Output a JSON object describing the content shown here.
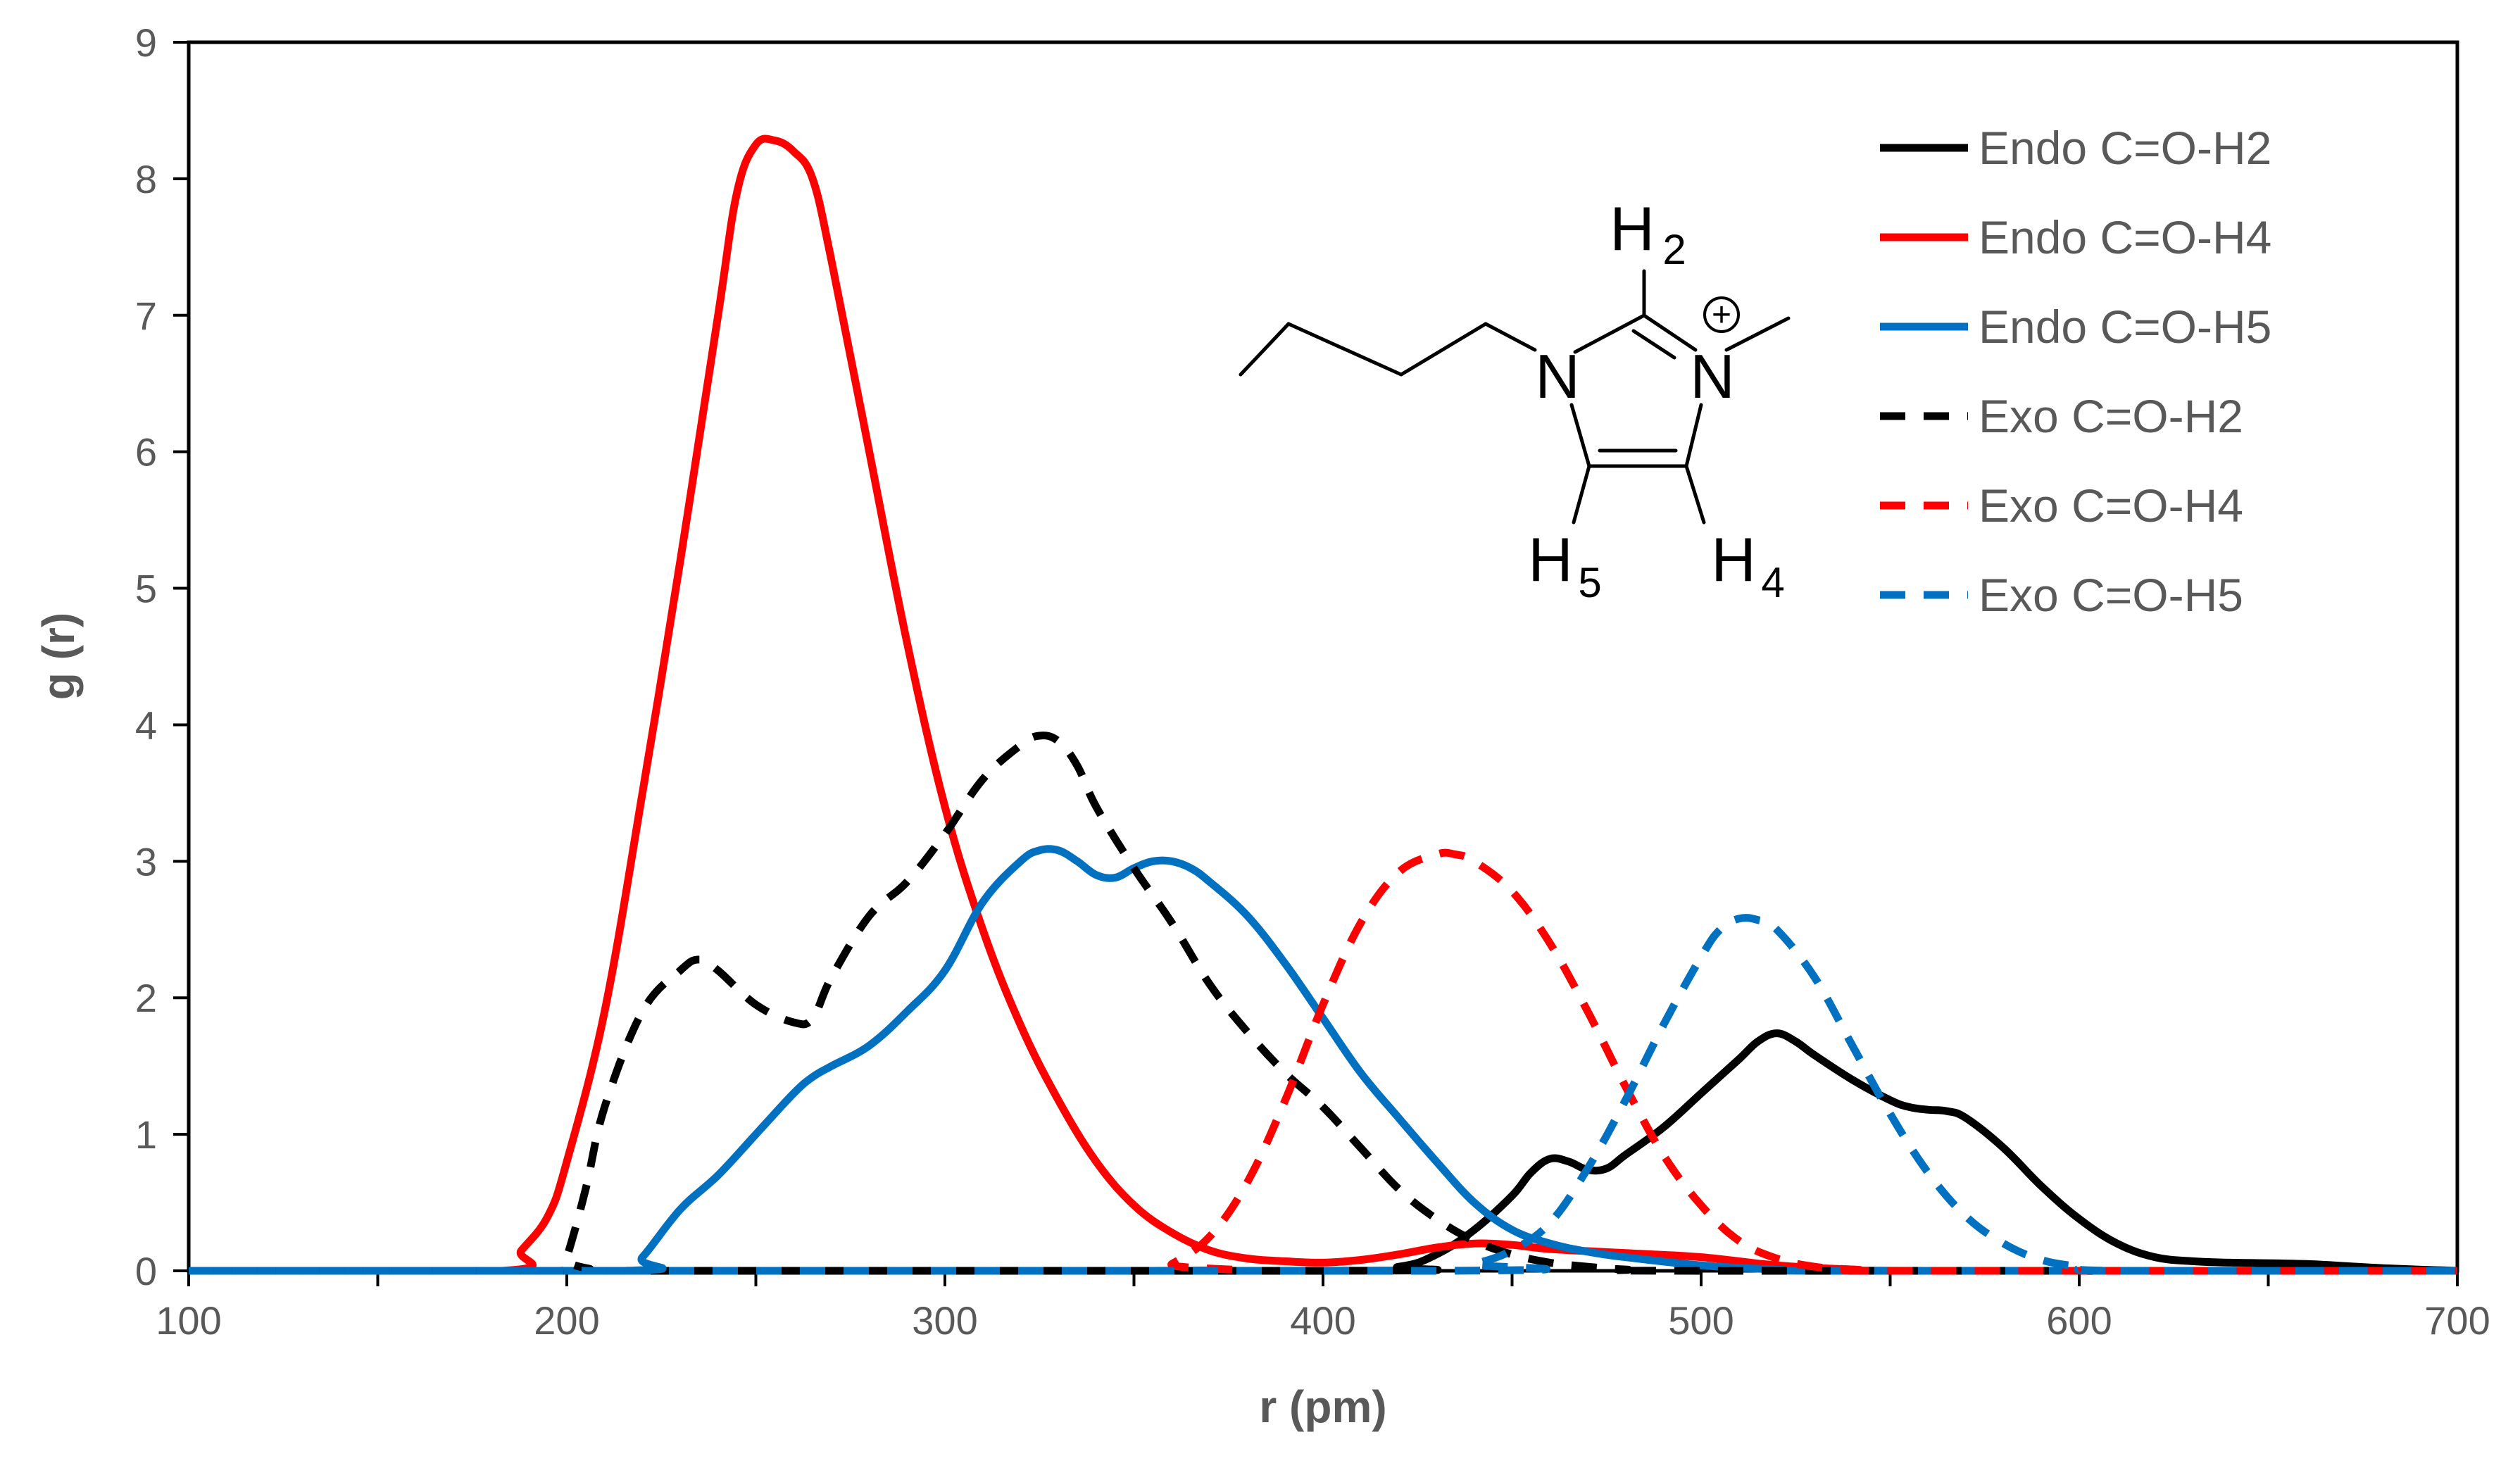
{
  "chart_data": {
    "type": "line",
    "xlabel": "r (pm)",
    "ylabel": "g (r)",
    "xlim": [
      100,
      700
    ],
    "ylim": [
      0,
      9
    ],
    "x_ticks": [
      "100",
      "200",
      "300",
      "400",
      "500",
      "600",
      "700"
    ],
    "y_ticks": [
      "0",
      "1",
      "2",
      "3",
      "4",
      "5",
      "6",
      "7",
      "8",
      "9"
    ],
    "grid": false,
    "legend_position": "top-right",
    "series": [
      {
        "name": "Endo C=O-H2",
        "color": "#000000",
        "dash": "solid",
        "x": [
          100,
          400,
          420,
          430,
          440,
          450,
          455,
          460,
          465,
          470,
          475,
          480,
          490,
          500,
          510,
          515,
          520,
          525,
          530,
          540,
          550,
          555,
          560,
          565,
          570,
          580,
          590,
          600,
          610,
          620,
          630,
          640,
          660,
          680,
          700
        ],
        "y": [
          0,
          0,
          0.03,
          0.12,
          0.3,
          0.55,
          0.72,
          0.82,
          0.8,
          0.74,
          0.75,
          0.85,
          1.05,
          1.3,
          1.55,
          1.68,
          1.74,
          1.68,
          1.58,
          1.4,
          1.25,
          1.2,
          1.18,
          1.17,
          1.12,
          0.9,
          0.62,
          0.38,
          0.2,
          0.1,
          0.07,
          0.06,
          0.05,
          0.02,
          0
        ]
      },
      {
        "name": "Endo C=O-H4",
        "color": "#ff0000",
        "dash": "solid",
        "x": [
          100,
          183,
          188,
          195,
          200,
          210,
          220,
          230,
          240,
          245,
          250,
          255,
          260,
          265,
          270,
          280,
          290,
          300,
          310,
          320,
          330,
          340,
          350,
          360,
          370,
          380,
          390,
          400,
          410,
          420,
          430,
          440,
          450,
          460,
          480,
          500,
          520,
          540,
          560,
          700
        ],
        "y": [
          0,
          0,
          0.15,
          0.4,
          0.8,
          1.9,
          3.5,
          5.2,
          7.0,
          7.9,
          8.25,
          8.28,
          8.2,
          8.0,
          7.4,
          6.0,
          4.6,
          3.4,
          2.5,
          1.8,
          1.25,
          0.8,
          0.48,
          0.28,
          0.15,
          0.09,
          0.07,
          0.06,
          0.08,
          0.12,
          0.17,
          0.2,
          0.19,
          0.16,
          0.13,
          0.1,
          0.04,
          0.01,
          0,
          0
        ]
      },
      {
        "name": "Endo C=O-H5",
        "color": "#0070c0",
        "dash": "solid",
        "x": [
          100,
          215,
          220,
          230,
          240,
          250,
          260,
          265,
          270,
          280,
          290,
          300,
          310,
          320,
          325,
          330,
          335,
          340,
          345,
          350,
          355,
          360,
          365,
          370,
          380,
          390,
          400,
          410,
          420,
          430,
          440,
          450,
          460,
          470,
          480,
          500,
          520,
          540,
          700
        ],
        "y": [
          0,
          0,
          0.1,
          0.45,
          0.7,
          1.0,
          1.3,
          1.42,
          1.5,
          1.65,
          1.9,
          2.2,
          2.7,
          3.0,
          3.08,
          3.08,
          3.0,
          2.9,
          2.88,
          2.95,
          3.0,
          3.0,
          2.95,
          2.85,
          2.6,
          2.25,
          1.85,
          1.45,
          1.12,
          0.8,
          0.5,
          0.3,
          0.2,
          0.14,
          0.1,
          0.04,
          0.01,
          0,
          0
        ]
      },
      {
        "name": "Exo C=O-H2",
        "color": "#000000",
        "dash": "dashed",
        "x": [
          100,
          198,
          200,
          205,
          210,
          220,
          230,
          235,
          240,
          250,
          260,
          265,
          270,
          280,
          290,
          300,
          310,
          320,
          325,
          330,
          335,
          340,
          350,
          360,
          370,
          380,
          390,
          400,
          410,
          420,
          430,
          440,
          450,
          460,
          470,
          480,
          500,
          700
        ],
        "y": [
          0,
          0,
          0.1,
          0.6,
          1.2,
          1.9,
          2.2,
          2.28,
          2.2,
          1.95,
          1.82,
          1.85,
          2.15,
          2.6,
          2.85,
          3.2,
          3.6,
          3.85,
          3.92,
          3.88,
          3.7,
          3.4,
          2.95,
          2.55,
          2.1,
          1.75,
          1.45,
          1.2,
          0.9,
          0.6,
          0.38,
          0.22,
          0.12,
          0.06,
          0.03,
          0.01,
          0,
          0
        ]
      },
      {
        "name": "Exo C=O-H4",
        "color": "#ff0000",
        "dash": "dashed",
        "x": [
          100,
          355,
          360,
          370,
          380,
          390,
          400,
          410,
          420,
          430,
          435,
          440,
          450,
          460,
          470,
          480,
          490,
          500,
          510,
          520,
          530,
          540,
          550,
          700
        ],
        "y": [
          0,
          0,
          0.05,
          0.25,
          0.65,
          1.25,
          1.95,
          2.55,
          2.92,
          3.05,
          3.05,
          3.0,
          2.78,
          2.4,
          1.9,
          1.35,
          0.85,
          0.48,
          0.22,
          0.09,
          0.03,
          0.01,
          0,
          0
        ]
      },
      {
        "name": "Exo C=O-H5",
        "color": "#0070c0",
        "dash": "dashed",
        "x": [
          100,
          430,
          440,
          450,
          460,
          470,
          480,
          490,
          500,
          505,
          510,
          515,
          520,
          530,
          540,
          550,
          560,
          570,
          580,
          590,
          600,
          610,
          700
        ],
        "y": [
          0,
          0,
          0.05,
          0.15,
          0.35,
          0.75,
          1.25,
          1.8,
          2.3,
          2.5,
          2.58,
          2.57,
          2.5,
          2.15,
          1.65,
          1.15,
          0.72,
          0.4,
          0.2,
          0.08,
          0.03,
          0,
          0
        ]
      }
    ]
  },
  "molecule": {
    "labels": {
      "n1": "N",
      "n3": "N",
      "h2": "H",
      "h2_sub": "2",
      "h4": "H",
      "h4_sub": "4",
      "h5": "H",
      "h5_sub": "5",
      "charge": "+"
    }
  }
}
